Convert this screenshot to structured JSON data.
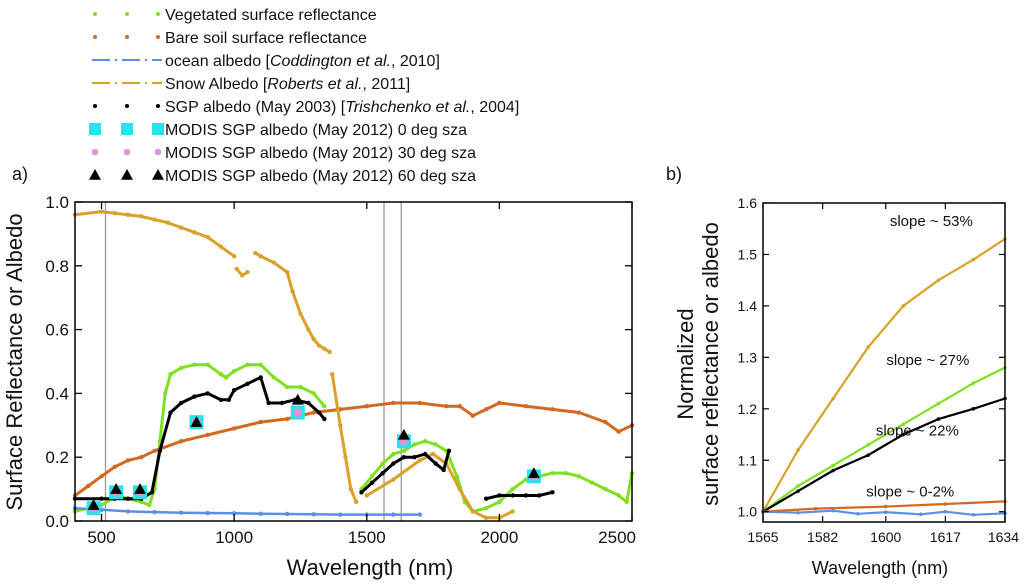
{
  "legend": [
    {
      "label": "Vegetated surface reflectance",
      "color": "#7fe020",
      "marker": "dot"
    },
    {
      "label": "Bare soil surface reflectance",
      "color": "#d2691e",
      "marker": "dot"
    },
    {
      "label_pre": "ocean albedo [",
      "label_italic": "Coddington et al.",
      "label_post": ", 2010]",
      "color": "#5b8fe6",
      "marker": "dashdot"
    },
    {
      "label_pre": "Snow Albedo [",
      "label_italic": "Roberts et al.",
      "label_post": ", 2011]",
      "color": "#d9a02a",
      "marker": "dashdot"
    },
    {
      "label_pre": "SGP albedo (May 2003) [",
      "label_italic": "Trishchenko et al.",
      "label_post": ", 2004]",
      "color": "#000000",
      "marker": "dot"
    },
    {
      "label": "MODIS SGP albedo (May 2012) 0 deg sza",
      "color": "#22e5ee",
      "marker": "square"
    },
    {
      "label": "MODIS SGP albedo (May 2012) 30 deg sza",
      "color": "#d898d8",
      "marker": "circle"
    },
    {
      "label": "MODIS SGP albedo (May 2012) 60 deg sza",
      "color": "#000000",
      "marker": "triangle"
    }
  ],
  "colors": {
    "veg": "#7fe020",
    "soil": "#d2691e",
    "ocean": "#5b8fe6",
    "snow": "#d9a02a",
    "sgp": "#000000",
    "modis0": "#22e5ee",
    "modis30": "#d898d8",
    "modis60": "#000000",
    "vline": "#9a9a9a"
  },
  "chart_data": [
    {
      "type": "line",
      "panel_label": "a)",
      "xlabel": "Wavelength (nm)",
      "ylabel": "Surface Reflectance or Albedo",
      "xlim": [
        400,
        2500
      ],
      "ylim": [
        0,
        1.0
      ],
      "xticks": [
        500,
        1000,
        1500,
        2000,
        2500
      ],
      "xtick_labels": [
        "500",
        "1000",
        "1500",
        "2000",
        "2500"
      ],
      "yticks": [
        0.0,
        0.2,
        0.4,
        0.6,
        0.8,
        1.0
      ],
      "ytick_labels": [
        "0.0",
        "0.2",
        "0.4",
        "0.6",
        "0.8",
        "1.0"
      ],
      "vertical_lines_nm": [
        515,
        1565,
        1630
      ],
      "series": [
        {
          "name": "Vegetated surface reflectance",
          "key": "veg",
          "segments": [
            {
              "x": [
                400,
                450,
                500,
                540,
                560,
                600,
                650,
                680,
                700,
                720,
                740,
                760,
                800,
                850,
                900,
                950,
                970,
                1000,
                1050,
                1100,
                1150,
                1200,
                1250,
                1300,
                1340
              ],
              "y": [
                0.03,
                0.04,
                0.05,
                0.07,
                0.08,
                0.07,
                0.06,
                0.05,
                0.1,
                0.25,
                0.4,
                0.46,
                0.48,
                0.49,
                0.49,
                0.46,
                0.45,
                0.47,
                0.49,
                0.49,
                0.45,
                0.42,
                0.42,
                0.4,
                0.36
              ]
            },
            {
              "x": [
                1480,
                1520,
                1560,
                1600,
                1640,
                1680,
                1720,
                1760,
                1800,
                1840,
                1870,
                1900,
                1950,
                2000,
                2050,
                2100,
                2150,
                2200,
                2250,
                2300,
                2350,
                2400,
                2450,
                2480,
                2500
              ],
              "y": [
                0.1,
                0.14,
                0.18,
                0.21,
                0.22,
                0.24,
                0.25,
                0.24,
                0.22,
                0.14,
                0.06,
                0.03,
                0.04,
                0.06,
                0.1,
                0.13,
                0.14,
                0.15,
                0.15,
                0.14,
                0.12,
                0.1,
                0.08,
                0.06,
                0.15
              ]
            }
          ]
        },
        {
          "name": "Bare soil surface reflectance",
          "key": "soil",
          "segments": [
            {
              "x": [
                400,
                450,
                500,
                550,
                600,
                650,
                700,
                800,
                900,
                1000,
                1100,
                1200,
                1300,
                1400,
                1500,
                1600,
                1700,
                1800,
                1850,
                1900,
                1950,
                2000,
                2100,
                2200,
                2300,
                2400,
                2450,
                2500
              ],
              "y": [
                0.08,
                0.11,
                0.14,
                0.17,
                0.19,
                0.2,
                0.22,
                0.25,
                0.27,
                0.29,
                0.31,
                0.32,
                0.34,
                0.35,
                0.36,
                0.37,
                0.37,
                0.36,
                0.36,
                0.33,
                0.35,
                0.37,
                0.36,
                0.35,
                0.34,
                0.31,
                0.28,
                0.3
              ]
            }
          ]
        },
        {
          "name": "ocean albedo [Coddington et al., 2010]",
          "key": "ocean",
          "segments": [
            {
              "x": [
                400,
                500,
                600,
                700,
                800,
                900,
                1000,
                1100,
                1200,
                1300,
                1400,
                1500,
                1600,
                1700
              ],
              "y": [
                0.04,
                0.035,
                0.03,
                0.028,
                0.026,
                0.025,
                0.024,
                0.023,
                0.022,
                0.021,
                0.02,
                0.02,
                0.02,
                0.02
              ]
            }
          ]
        },
        {
          "name": "Snow Albedo [Roberts et al., 2011]",
          "key": "snow",
          "segments": [
            {
              "x": [
                400,
                500,
                550,
                600,
                650,
                700,
                750,
                800,
                850,
                900,
                950,
                1000
              ],
              "y": [
                0.96,
                0.97,
                0.965,
                0.96,
                0.955,
                0.945,
                0.935,
                0.92,
                0.905,
                0.89,
                0.86,
                0.83
              ]
            },
            {
              "x": [
                1010,
                1030,
                1050
              ],
              "y": [
                0.79,
                0.77,
                0.78
              ]
            },
            {
              "x": [
                1080,
                1100,
                1150,
                1200,
                1220,
                1250,
                1280,
                1300,
                1320,
                1340,
                1360
              ],
              "y": [
                0.84,
                0.83,
                0.81,
                0.78,
                0.72,
                0.65,
                0.6,
                0.57,
                0.55,
                0.54,
                0.53
              ]
            },
            {
              "x": [
                1370,
                1400,
                1420,
                1440,
                1460
              ],
              "y": [
                0.46,
                0.3,
                0.2,
                0.1,
                0.06
              ]
            },
            {
              "x": [
                1500,
                1600,
                1700,
                1750,
                1800,
                1850,
                1900,
                1950,
                2000,
                2050
              ],
              "y": [
                0.08,
                0.13,
                0.19,
                0.21,
                0.18,
                0.1,
                0.03,
                0.01,
                0.01,
                0.03
              ]
            }
          ]
        },
        {
          "name": "SGP albedo (May 2003) [Trishchenko et al., 2004]",
          "key": "sgp",
          "segments": [
            {
              "x": [
                400,
                500,
                550,
                600,
                650,
                690,
                720,
                760,
                800,
                850,
                900,
                950,
                980,
                1000,
                1050,
                1100,
                1130,
                1180,
                1230,
                1280,
                1320,
                1340
              ],
              "y": [
                0.07,
                0.07,
                0.07,
                0.07,
                0.07,
                0.09,
                0.22,
                0.34,
                0.37,
                0.39,
                0.4,
                0.38,
                0.38,
                0.41,
                0.43,
                0.45,
                0.37,
                0.37,
                0.38,
                0.37,
                0.34,
                0.32
              ]
            },
            {
              "x": [
                1480,
                1520,
                1560,
                1600,
                1640,
                1680,
                1720,
                1760,
                1790,
                1810
              ],
              "y": [
                0.09,
                0.12,
                0.15,
                0.18,
                0.2,
                0.2,
                0.21,
                0.18,
                0.16,
                0.22
              ]
            },
            {
              "x": [
                1950,
                2000,
                2050,
                2100,
                2150,
                2200
              ],
              "y": [
                0.07,
                0.08,
                0.08,
                0.08,
                0.08,
                0.09
              ]
            }
          ]
        }
      ],
      "markers": [
        {
          "name": "MODIS SGP albedo (May 2012) 0 deg sza",
          "key": "modis0",
          "shape": "square",
          "x": [
            470,
            555,
            645,
            858,
            1240,
            1640,
            2130
          ],
          "y": [
            0.04,
            0.09,
            0.09,
            0.31,
            0.34,
            0.25,
            0.14
          ]
        },
        {
          "name": "MODIS SGP albedo (May 2012) 30 deg sza",
          "key": "modis30",
          "shape": "circle",
          "x": [
            470,
            555,
            645,
            858,
            1240,
            1640,
            2130
          ],
          "y": [
            0.04,
            0.09,
            0.09,
            0.31,
            0.34,
            0.25,
            0.14
          ]
        },
        {
          "name": "MODIS SGP albedo (May 2012) 60 deg sza",
          "key": "modis60",
          "shape": "triangle",
          "x": [
            470,
            555,
            645,
            858,
            1240,
            1640,
            2130
          ],
          "y": [
            0.05,
            0.1,
            0.1,
            0.31,
            0.38,
            0.27,
            0.15
          ]
        }
      ]
    },
    {
      "type": "line",
      "panel_label": "b)",
      "xlabel": "Wavelength (nm)",
      "ylabel": "Normalized surface reflectance or albedo",
      "ylabel_lines": [
        "Normalized",
        "surface reflectance or albedo"
      ],
      "xlim": [
        1565,
        1634
      ],
      "ylim": [
        0.98,
        1.6
      ],
      "xticks": [
        1565,
        1582,
        1600,
        1617,
        1634
      ],
      "xtick_labels": [
        "1565",
        "1582",
        "1600",
        "1617",
        "1634"
      ],
      "yticks": [
        1.0,
        1.1,
        1.2,
        1.3,
        1.4,
        1.5,
        1.6
      ],
      "ytick_labels": [
        "1.0",
        "1.1",
        "1.2",
        "1.3",
        "1.4",
        "1.5",
        "1.6"
      ],
      "series": [
        {
          "name": "Snow",
          "key": "snow",
          "x": [
            1565,
            1575,
            1585,
            1595,
            1605,
            1615,
            1625,
            1634
          ],
          "y": [
            1.0,
            1.12,
            1.22,
            1.32,
            1.4,
            1.45,
            1.49,
            1.53
          ]
        },
        {
          "name": "Vegetation",
          "key": "veg",
          "x": [
            1565,
            1575,
            1585,
            1595,
            1605,
            1615,
            1625,
            1634
          ],
          "y": [
            1.0,
            1.05,
            1.09,
            1.13,
            1.17,
            1.21,
            1.25,
            1.28
          ]
        },
        {
          "name": "SGP",
          "key": "sgp",
          "x": [
            1565,
            1575,
            1585,
            1595,
            1605,
            1615,
            1625,
            1634
          ],
          "y": [
            1.0,
            1.04,
            1.08,
            1.11,
            1.15,
            1.18,
            1.2,
            1.22
          ]
        },
        {
          "name": "Soil",
          "key": "soil",
          "x": [
            1565,
            1580,
            1600,
            1617,
            1634
          ],
          "y": [
            1.0,
            1.006,
            1.01,
            1.015,
            1.02
          ]
        },
        {
          "name": "Ocean",
          "key": "ocean",
          "x": [
            1565,
            1575,
            1585,
            1592,
            1600,
            1610,
            1617,
            1625,
            1634
          ],
          "y": [
            1.0,
            0.998,
            1.002,
            0.996,
            0.999,
            0.995,
            1.0,
            0.994,
            0.997
          ]
        }
      ],
      "annotations": [
        {
          "text": "slope ~ 53%",
          "x": 1613,
          "y": 1.555
        },
        {
          "text": "slope ~ 27%",
          "x": 1612,
          "y": 1.285
        },
        {
          "text": "slope ~ 22%",
          "x": 1609,
          "y": 1.148
        },
        {
          "text": "slope ~ 0-2%",
          "x": 1607,
          "y": 1.03
        }
      ]
    }
  ]
}
